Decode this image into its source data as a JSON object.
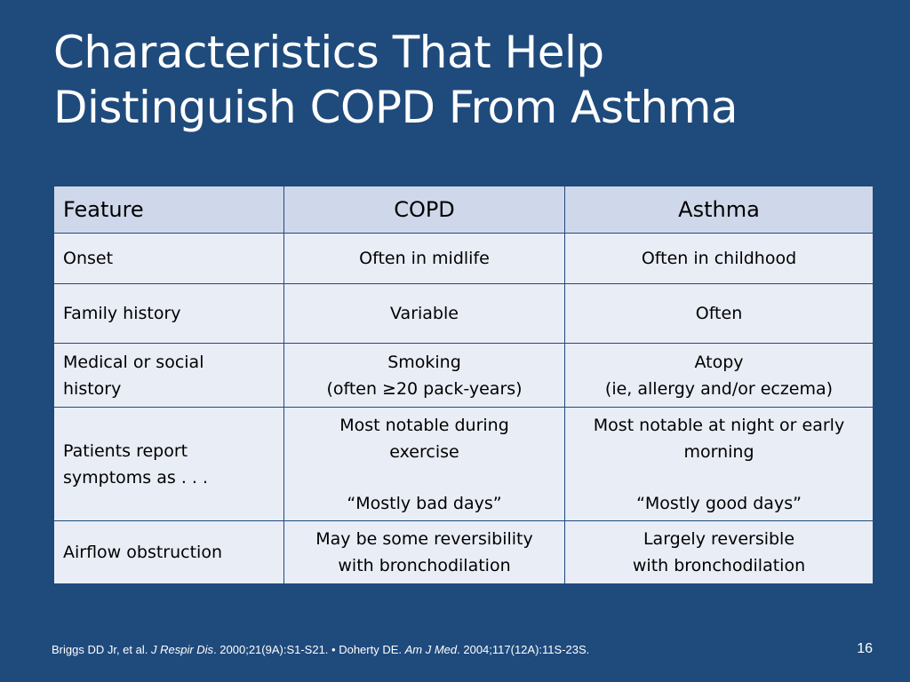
{
  "slide": {
    "title_line1": "Characteristics That Help",
    "title_line2": "Distinguish COPD From Asthma",
    "page_number": "16"
  },
  "table": {
    "headers": [
      "Feature",
      "COPD",
      "Asthma"
    ],
    "rows": [
      {
        "feature": [
          "Onset"
        ],
        "copd": [
          "Often in midlife"
        ],
        "asthma": [
          "Often in childhood"
        ]
      },
      {
        "feature": [
          "Family history"
        ],
        "copd": [
          "Variable"
        ],
        "asthma": [
          "Often"
        ]
      },
      {
        "feature": [
          "Medical or social",
          "history"
        ],
        "copd": [
          "Smoking",
          "(often ≥20 pack-years)"
        ],
        "asthma": [
          "Atopy",
          "(ie, allergy and/or eczema)"
        ]
      },
      {
        "feature": [
          "Patients report",
          "symptoms as . . ."
        ],
        "copd": [
          "Most notable during",
          "exercise",
          "“Mostly bad days”"
        ],
        "asthma": [
          "Most notable at night or early",
          "morning",
          "“Mostly good days”"
        ]
      },
      {
        "feature": [
          "Airflow obstruction"
        ],
        "copd": [
          "May be some reversibility",
          "with bronchodilation"
        ],
        "asthma": [
          "Largely reversible",
          "with bronchodilation"
        ]
      }
    ]
  },
  "citation": {
    "part1": "Briggs DD Jr, et al. ",
    "journal1": "J Respir Dis",
    "part2": ". 2000;21(9A):S1-S21. • Doherty DE. ",
    "journal2": "Am J Med",
    "part3": ". 2004;117(12A):11S-23S."
  }
}
